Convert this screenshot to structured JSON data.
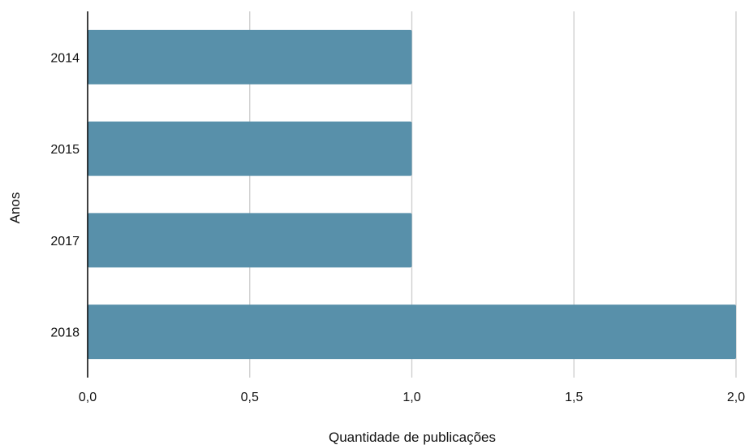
{
  "chart_data": {
    "type": "bar",
    "orientation": "horizontal",
    "categories": [
      "2014",
      "2015",
      "2017",
      "2018"
    ],
    "values": [
      1,
      1,
      1,
      2
    ],
    "xlabel": "Quantidade de publicações",
    "ylabel": "Anos",
    "xlim": [
      0,
      2
    ],
    "xticks": [
      "0,0",
      "0,5",
      "1,0",
      "1,5",
      "2,0"
    ],
    "grid": "vertical",
    "bar_color": "#5890aa",
    "grid_color": "#cccccc",
    "axis_color": "#000000"
  }
}
